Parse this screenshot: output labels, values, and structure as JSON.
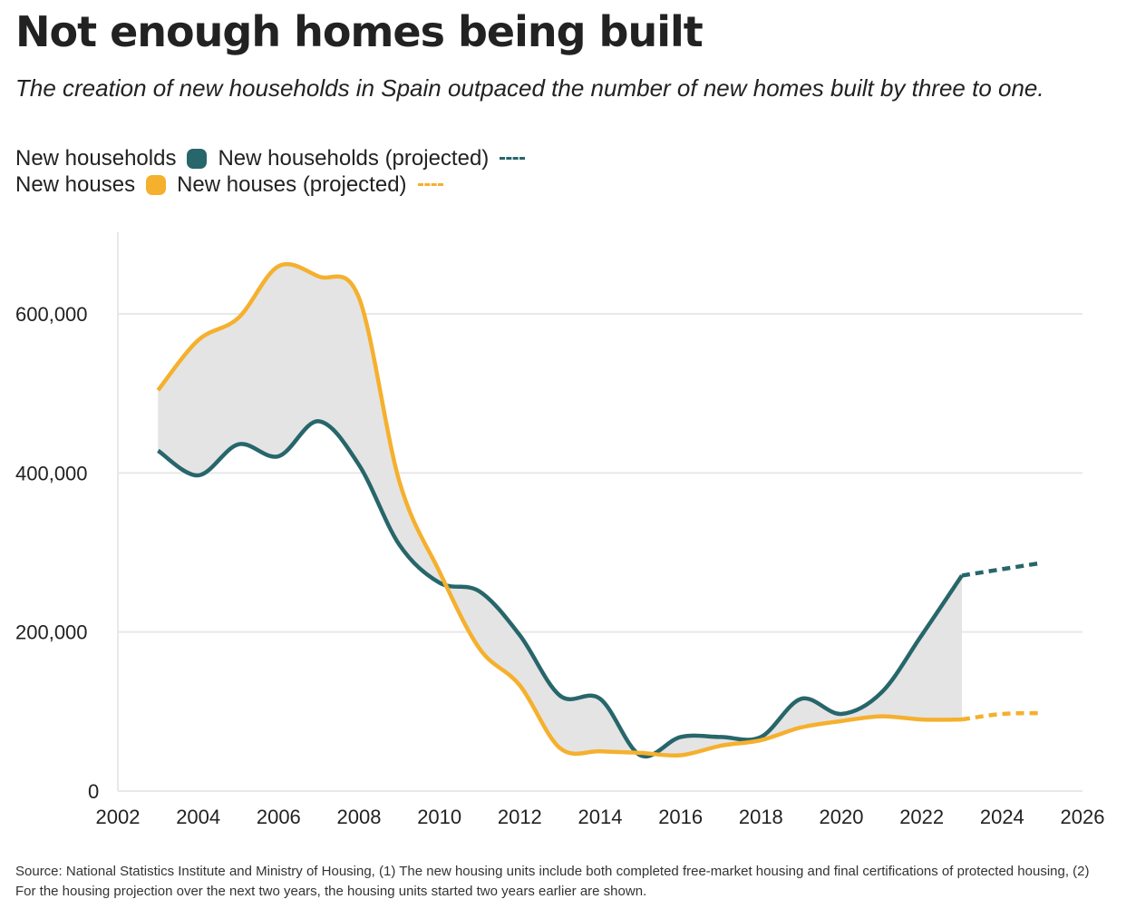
{
  "title": "Not enough homes being built",
  "subtitle": "The creation of new households in Spain outpaced the number of new homes built by three to one.",
  "legend": {
    "households": "New households",
    "households_projected": "New households (projected)",
    "houses": "New houses",
    "houses_projected": "New houses (projected)"
  },
  "colors": {
    "households": "#27666a",
    "houses": "#f5b02e",
    "band": "#e4e4e4",
    "grid": "#e8e8e8"
  },
  "source": "Source: National Statistics Institute and Ministry of Housing, (1) The new housing units include both completed free-market housing and final certifications of protected housing, (2) For the housing projection over the next two years, the housing units started two years earlier are shown.",
  "chart_data": {
    "type": "line",
    "title": "Not enough homes being built",
    "xlabel": "",
    "ylabel": "",
    "xlim": [
      2002,
      2026
    ],
    "ylim": [
      0,
      700000
    ],
    "xticks": [
      2002,
      2004,
      2006,
      2008,
      2010,
      2012,
      2014,
      2016,
      2018,
      2020,
      2022,
      2024,
      2026
    ],
    "xtick_labels": [
      "2002",
      "2004",
      "2006",
      "2008",
      "2010",
      "2012",
      "2014",
      "2016",
      "2018",
      "2020",
      "2022",
      "2024",
      "2026"
    ],
    "yticks": [
      0,
      200000,
      400000,
      600000
    ],
    "ytick_labels": [
      "0",
      "200,000",
      "400,000",
      "600,000"
    ],
    "grid": true,
    "legend_position": "top-left",
    "series": [
      {
        "name": "New households",
        "x": [
          2003,
          2004,
          2005,
          2006,
          2007,
          2008,
          2009,
          2010,
          2011,
          2012,
          2013,
          2014,
          2015,
          2016,
          2017,
          2018,
          2019,
          2020,
          2021,
          2022,
          2023
        ],
        "values": [
          428000,
          397000,
          436000,
          421000,
          465000,
          410000,
          310000,
          262000,
          251000,
          196000,
          120000,
          116000,
          45000,
          68000,
          68000,
          68000,
          116000,
          97000,
          124000,
          196000,
          271000
        ]
      },
      {
        "name": "New households (projected)",
        "x": [
          2023,
          2024,
          2025
        ],
        "values": [
          271000,
          279000,
          287000
        ]
      },
      {
        "name": "New houses",
        "x": [
          2003,
          2004,
          2005,
          2006,
          2007,
          2008,
          2009,
          2010,
          2011,
          2012,
          2013,
          2014,
          2015,
          2016,
          2017,
          2018,
          2019,
          2020,
          2021,
          2022,
          2023
        ],
        "values": [
          504000,
          567000,
          595000,
          660000,
          647000,
          620000,
          390000,
          276000,
          179000,
          133000,
          54000,
          50000,
          48000,
          45000,
          57000,
          64000,
          80000,
          88000,
          94000,
          90000,
          90000
        ]
      },
      {
        "name": "New houses (projected)",
        "x": [
          2023,
          2024,
          2025
        ],
        "values": [
          90000,
          97000,
          98000
        ]
      }
    ]
  }
}
